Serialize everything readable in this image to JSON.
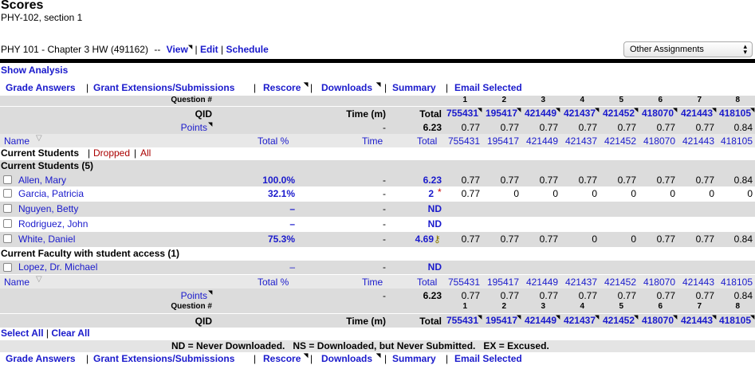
{
  "header": {
    "title": "Scores",
    "course": "PHY-102, section 1"
  },
  "assignment": {
    "name": "PHY 101 - Chapter 3 HW (491162)",
    "dash": "--",
    "view": "View",
    "edit": "Edit",
    "schedule": "Schedule"
  },
  "other_assignments": "Other Assignments",
  "show_analysis": "Show Analysis",
  "actions": {
    "grade": "Grade Answers",
    "grant": "Grant Extensions/Submissions",
    "rescore": "Rescore",
    "downloads": "Downloads",
    "summary": "Summary",
    "email": "Email Selected"
  },
  "table": {
    "question_label": "Question #",
    "qid_label": "QID",
    "points_label": "Points",
    "time_m_label": "Time (m)",
    "total_label": "Total",
    "name_label": "Name",
    "total_pct_label": "Total %",
    "time_label": "Time",
    "dash": "-",
    "total_points": "6.23",
    "questions": [
      "1",
      "2",
      "3",
      "4",
      "5",
      "6",
      "7",
      "8"
    ],
    "qids": [
      "755431",
      "195417",
      "421449",
      "421437",
      "421452",
      "418070",
      "421443",
      "418105"
    ],
    "points": [
      "0.77",
      "0.77",
      "0.77",
      "0.77",
      "0.77",
      "0.77",
      "0.77",
      "0.84"
    ]
  },
  "filter": {
    "current": "Current Students",
    "dropped": "Dropped",
    "all": "All"
  },
  "sections": {
    "students": "Current Students (5)",
    "faculty": "Current Faculty with student access (1)"
  },
  "students": [
    {
      "name": "Allen, Mary",
      "pct": "100.0%",
      "time": "-",
      "total": "6.23",
      "flag": "",
      "scores": [
        "0.77",
        "0.77",
        "0.77",
        "0.77",
        "0.77",
        "0.77",
        "0.77",
        "0.84"
      ]
    },
    {
      "name": "Garcia, Patricia",
      "pct": "32.1%",
      "time": "-",
      "total": "2",
      "flag": "*",
      "scores": [
        "0.77",
        "0",
        "0",
        "0",
        "0",
        "0",
        "0",
        "0"
      ]
    },
    {
      "name": "Nguyen, Betty",
      "pct": "–",
      "time": "-",
      "total": "ND",
      "flag": "",
      "scores": [
        "",
        "",
        "",
        "",
        "",
        "",
        "",
        ""
      ]
    },
    {
      "name": "Rodriguez, John",
      "pct": "–",
      "time": "-",
      "total": "ND",
      "flag": "",
      "scores": [
        "",
        "",
        "",
        "",
        "",
        "",
        "",
        ""
      ]
    },
    {
      "name": "White, Daniel",
      "pct": "75.3%",
      "time": "-",
      "total": "4.69",
      "flag": "key",
      "scores": [
        "0.77",
        "0.77",
        "0.77",
        "0",
        "0",
        "0.77",
        "0.77",
        "0.84"
      ]
    }
  ],
  "faculty": [
    {
      "name": "Lopez, Dr. Michael",
      "pct": "–",
      "time": "-",
      "total": "ND"
    }
  ],
  "select_all": "Select All",
  "clear_all": "Clear All",
  "legend": "ND = Never Downloaded.   NS = Downloaded, but Never Submitted.   EX = Excused."
}
